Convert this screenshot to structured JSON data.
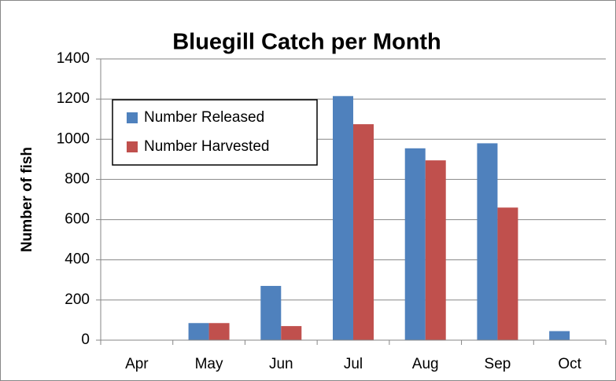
{
  "chart_data": {
    "type": "bar",
    "title": "Bluegill Catch per Month",
    "y_label": "Number of fish",
    "categories": [
      "Apr",
      "May",
      "Jun",
      "Jul",
      "Aug",
      "Sep",
      "Oct"
    ],
    "series": [
      {
        "name": "Number Released",
        "color": "#4f81bd",
        "values": [
          0,
          85,
          270,
          1215,
          955,
          980,
          45
        ]
      },
      {
        "name": "Number Harvested",
        "color": "#c0504d",
        "values": [
          0,
          85,
          70,
          1075,
          895,
          660,
          0
        ]
      }
    ],
    "ylim": [
      0,
      1400
    ],
    "yticks": [
      0,
      200,
      400,
      600,
      800,
      1000,
      1200,
      1400
    ],
    "grid": true,
    "legend": "upper left"
  }
}
